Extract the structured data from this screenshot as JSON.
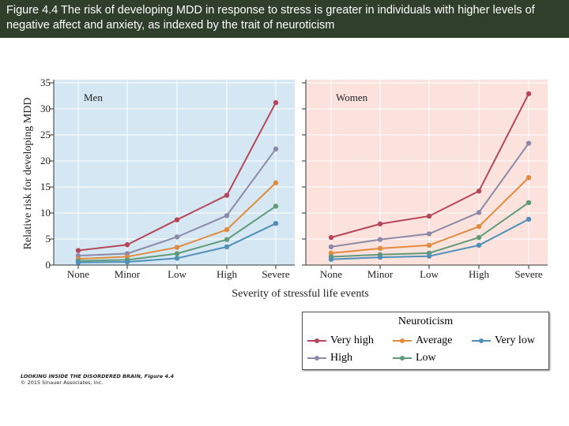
{
  "header": {
    "caption": "Figure 4.4  The risk of developing MDD in response to stress is greater in individuals with higher levels of negative affect and anxiety, as indexed by the trait of neuroticism"
  },
  "credit": {
    "title": "LOOKING INSIDE THE DISORDERED BRAIN, Figure 4.4",
    "copyright": "© 2015 Sinauer Associates, Inc."
  },
  "chart_data": {
    "type": "line",
    "xlabel": "Severity of stressful life events",
    "ylabel": "Relative risk for developing MDD",
    "ylim": [
      0,
      35
    ],
    "yticks": [
      0,
      5,
      10,
      15,
      20,
      25,
      30,
      35
    ],
    "categories": [
      "None",
      "Minor",
      "Low",
      "High",
      "Severe"
    ],
    "grid": true,
    "legend": {
      "title": "Neuroticism",
      "placement": "bottom-right"
    },
    "panels": [
      {
        "title": "Men",
        "background": "#d5e7f2",
        "series": [
          {
            "name": "Very high",
            "color": "#b5475b",
            "values": [
              2.8,
              3.9,
              8.7,
              13.4,
              31.2
            ]
          },
          {
            "name": "High",
            "color": "#8b8aa9",
            "values": [
              1.8,
              2.2,
              5.4,
              9.5,
              22.3
            ]
          },
          {
            "name": "Average",
            "color": "#e08b3d",
            "values": [
              1.2,
              1.6,
              3.4,
              6.8,
              15.8
            ]
          },
          {
            "name": "Low",
            "color": "#5f9a79",
            "values": [
              0.8,
              1.0,
              2.2,
              4.9,
              11.3
            ]
          },
          {
            "name": "Very low",
            "color": "#4f8fb8",
            "values": [
              0.5,
              0.6,
              1.3,
              3.5,
              8.0
            ]
          }
        ]
      },
      {
        "title": "Women",
        "background": "#fbe2dc",
        "series": [
          {
            "name": "Very high",
            "color": "#b5475b",
            "values": [
              5.3,
              7.9,
              9.4,
              14.2,
              32.9
            ]
          },
          {
            "name": "High",
            "color": "#8b8aa9",
            "values": [
              3.5,
              4.9,
              6.0,
              10.1,
              23.4
            ]
          },
          {
            "name": "Average",
            "color": "#e08b3d",
            "values": [
              2.3,
              3.2,
              3.8,
              7.4,
              16.8
            ]
          },
          {
            "name": "Low",
            "color": "#5f9a79",
            "values": [
              1.6,
              2.0,
              2.3,
              5.3,
              12.0
            ]
          },
          {
            "name": "Very low",
            "color": "#4f8fb8",
            "values": [
              1.1,
              1.5,
              1.7,
              3.8,
              8.8
            ]
          }
        ]
      }
    ]
  }
}
